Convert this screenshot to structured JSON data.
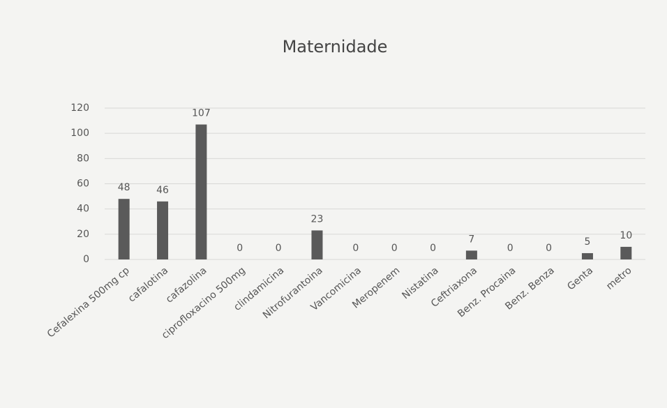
{
  "chart_data": {
    "type": "bar",
    "title": "Maternidade",
    "categories": [
      "Cefalexina 500mg cp",
      "cafalotina",
      "cafazolina",
      "ciprofloxacino 500mg",
      "clindamicina",
      "Nitrofurantoina",
      "Vancomicina",
      "Meropenem",
      "Nistatina",
      "Ceftriaxona",
      "Benz. Procaina",
      "Benz. Benza",
      "Genta",
      "metro"
    ],
    "values": [
      48,
      46,
      107,
      0,
      0,
      23,
      0,
      0,
      0,
      7,
      0,
      0,
      5,
      10
    ],
    "color": "#5a5a5a",
    "ylim": [
      0,
      120
    ],
    "yticks": [
      0,
      20,
      40,
      60,
      80,
      100,
      120
    ],
    "grid": true
  }
}
